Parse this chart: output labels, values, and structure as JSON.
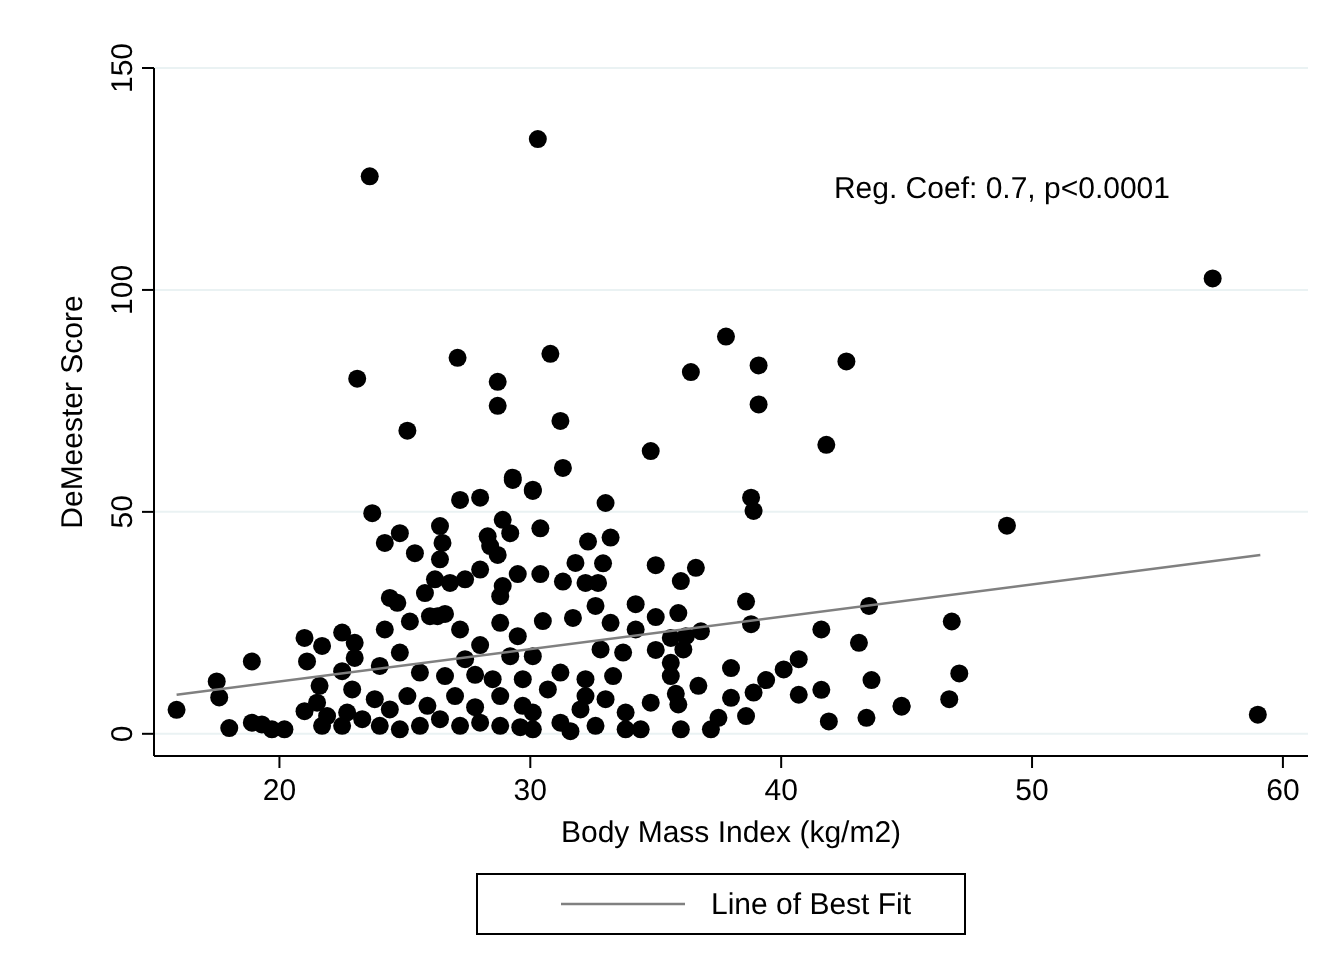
{
  "chart_data": {
    "type": "scatter",
    "xlabel": "Body Mass Index (kg/m2)",
    "ylabel": "DeMeester Score",
    "annotations": [
      "Reg. Coef: 0.7, p<0.0001"
    ],
    "xlim": [
      15,
      61
    ],
    "ylim": [
      -5,
      150
    ],
    "xticks": [
      20,
      30,
      40,
      50,
      60
    ],
    "yticks": [
      0,
      50,
      100,
      150
    ],
    "grid": "y",
    "legend": "bottom",
    "series": [
      {
        "marker": "circle",
        "color": "#000000",
        "x": [
          23.6,
          30.3,
          57.2,
          23.1,
          27.1,
          28.7,
          28.7,
          30.8,
          25.1,
          31.2,
          29.3,
          31.3,
          34.8,
          36.4,
          37.8,
          39.1,
          39.1,
          42.6,
          41.8,
          49.0,
          46.8,
          47.1,
          46.7,
          44.8,
          59.0,
          30.1,
          33.0,
          38.8,
          38.9,
          30.4,
          32.3,
          33.2,
          31.8,
          32.9,
          35.0,
          36.6,
          36.0,
          30.4,
          31.3,
          32.2,
          32.7,
          32.6,
          34.2,
          38.6,
          35.9,
          35.0,
          43.5,
          38.8,
          41.6,
          30.5,
          31.7,
          33.2,
          34.2,
          35.6,
          36.8,
          36.2,
          43.1,
          35.0,
          36.1,
          33.7,
          32.8,
          40.7,
          40.1,
          38.0,
          39.4,
          35.6,
          35.6,
          36.7,
          38.9,
          40.7,
          41.6,
          43.6,
          38.0,
          35.8,
          35.9,
          38.6,
          37.5,
          37.2,
          41.9,
          43.4,
          44.8,
          36.0,
          34.4,
          33.8,
          31.6,
          32.6,
          33.8,
          34.8,
          33.0,
          33.3,
          32.2,
          31.2,
          30.7,
          30.1,
          30.1,
          32.0,
          31.2,
          32.2,
          15.9,
          17.5,
          17.6,
          18.9,
          18.0,
          18.9,
          19.3,
          19.7,
          20.2,
          21.0,
          21.7,
          21.1,
          22.5,
          23.0,
          23.0,
          21.6,
          22.5,
          21.0,
          21.5,
          21.7,
          22.5,
          22.9,
          23.7,
          24.2,
          24.8,
          25.4,
          24.4,
          24.7,
          24.2,
          25.2,
          25.8,
          26.3,
          26.0,
          26.6,
          27.2,
          26.4,
          26.5,
          26.4,
          26.2,
          26.8,
          27.4,
          27.2,
          28.0,
          28.3,
          28.4,
          28.7,
          28.9,
          29.3,
          30.1,
          29.2,
          28.0,
          28.9,
          28.8,
          29.5,
          28.8,
          29.5,
          28.0,
          27.4,
          27.8,
          24.0,
          24.8,
          25.6,
          26.6,
          29.2,
          30.1,
          28.5,
          29.7,
          23.8,
          24.4,
          25.1,
          25.9,
          27.0,
          27.8,
          28.8,
          29.7,
          23.3,
          24.0,
          24.8,
          25.6,
          26.4,
          27.2,
          28.0,
          28.8,
          29.6,
          21.9,
          22.7
        ],
        "values": [
          125.6,
          134,
          102.6,
          80,
          84.7,
          79.3,
          73.9,
          85.6,
          68.3,
          70.5,
          57.7,
          59.9,
          63.7,
          81.5,
          89.5,
          83,
          74.2,
          83.9,
          65.1,
          46.9,
          25.3,
          13.6,
          7.8,
          6.1,
          4.3,
          55,
          52,
          53.2,
          50.2,
          46.3,
          43.3,
          44.2,
          38.5,
          38.4,
          38,
          37.4,
          34.4,
          36,
          34.3,
          34,
          34,
          28.8,
          29.2,
          29.8,
          27.2,
          26.3,
          28.8,
          24.7,
          23.5,
          25.4,
          26.1,
          25,
          23.5,
          21.6,
          23.1,
          22,
          20.5,
          18.9,
          19,
          18.3,
          19,
          16.8,
          14.5,
          14.8,
          12.1,
          16,
          13,
          10.8,
          9.3,
          8.8,
          9.9,
          12.1,
          8.1,
          9,
          6.6,
          4,
          3.6,
          1,
          2.8,
          3.6,
          6.3,
          1,
          1,
          1,
          0.6,
          1.8,
          4.8,
          7,
          7.8,
          13,
          12.3,
          13.8,
          10,
          4.8,
          1,
          5.5,
          2.5,
          8.5,
          5.4,
          11.8,
          8.2,
          16.3,
          1.3,
          2.5,
          2.1,
          1,
          1,
          21.6,
          19.8,
          16.3,
          22.8,
          20.5,
          17.1,
          10.8,
          14.1,
          5.1,
          7,
          1.8,
          1.8,
          10,
          49.7,
          43,
          45.2,
          40.7,
          30.6,
          29.5,
          23.5,
          25.3,
          31.7,
          26.5,
          26.5,
          27,
          23.5,
          46.8,
          43,
          39.3,
          34.8,
          34,
          34.8,
          52.7,
          53.2,
          44.5,
          42.3,
          40.3,
          48.2,
          57.2,
          54.7,
          45.2,
          37,
          33.3,
          31,
          36,
          25,
          22,
          20,
          16.8,
          13.3,
          15.3,
          18.3,
          13.8,
          13,
          17.5,
          17.5,
          12.3,
          12.3,
          7.8,
          5.5,
          8.5,
          6.3,
          8.5,
          6,
          8.5,
          6.3,
          3.3,
          1.8,
          1,
          1.8,
          3.3,
          1.8,
          2.5,
          1.8,
          1.5,
          4,
          4.8
        ]
      },
      {
        "type": "line",
        "marker": "none",
        "name": "Line of Best Fit",
        "color": "#808080",
        "x": [
          15.9,
          59.1
        ],
        "values": [
          8.8,
          40.3
        ]
      }
    ]
  }
}
